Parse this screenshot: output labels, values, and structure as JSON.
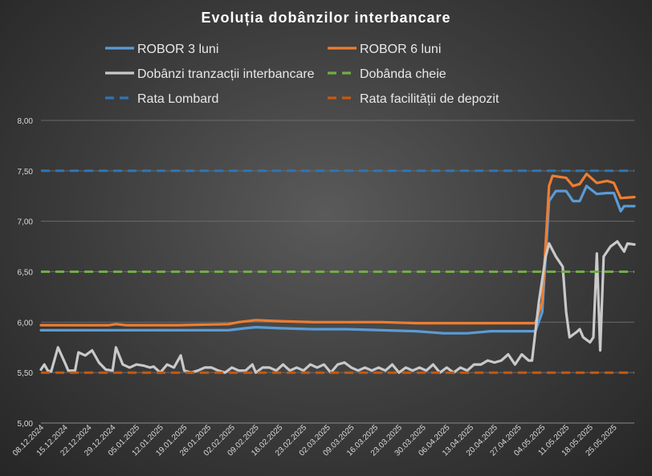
{
  "chart_data": {
    "type": "line",
    "title": "Evoluția dobânzilor interbancare",
    "xlabel": "",
    "ylabel": "",
    "ylim": [
      5.0,
      8.0
    ],
    "y_ticks": [
      "5,00",
      "5,50",
      "6,00",
      "6,50",
      "7,00",
      "7,50",
      "8,00"
    ],
    "x_tick_labels": [
      "08.12.2024",
      "15.12.2024",
      "22.12.2024",
      "29.12.2024",
      "05.01.2025",
      "12.01.2025",
      "19.01.2025",
      "26.01.2025",
      "02.02.2025",
      "09.02.2025",
      "16.02.2025",
      "23.02.2025",
      "02.03.2025",
      "09.03.2025",
      "16.03.2025",
      "23.03.2025",
      "30.03.2025",
      "06.04.2025",
      "13.04.2025",
      "20.04.2025",
      "27.04.2025",
      "04.05.2025",
      "11.05.2025",
      "18.05.2025",
      "25.05.2025"
    ],
    "x_range_days": [
      0,
      172
    ],
    "grid": true,
    "legend_position": "top",
    "series": [
      {
        "name": "ROBOR 3 luni",
        "color": "#5b9bd5",
        "dash": false,
        "points": [
          [
            0,
            5.92
          ],
          [
            20,
            5.92
          ],
          [
            40,
            5.92
          ],
          [
            55,
            5.92
          ],
          [
            60,
            5.94
          ],
          [
            63,
            5.95
          ],
          [
            70,
            5.94
          ],
          [
            80,
            5.93
          ],
          [
            90,
            5.93
          ],
          [
            100,
            5.92
          ],
          [
            110,
            5.91
          ],
          [
            118,
            5.89
          ],
          [
            125,
            5.89
          ],
          [
            132,
            5.91
          ],
          [
            145,
            5.91
          ],
          [
            147,
            6.1
          ],
          [
            149,
            7.2
          ],
          [
            151,
            7.3
          ],
          [
            154,
            7.3
          ],
          [
            156,
            7.2
          ],
          [
            158,
            7.2
          ],
          [
            160,
            7.35
          ],
          [
            163,
            7.27
          ],
          [
            166,
            7.28
          ],
          [
            168,
            7.28
          ],
          [
            170,
            7.1
          ],
          [
            171,
            7.15
          ],
          [
            174,
            7.15
          ]
        ]
      },
      {
        "name": "ROBOR 6 luni",
        "color": "#ed7d31",
        "dash": false,
        "points": [
          [
            0,
            5.97
          ],
          [
            20,
            5.97
          ],
          [
            22,
            5.98
          ],
          [
            25,
            5.97
          ],
          [
            40,
            5.97
          ],
          [
            55,
            5.98
          ],
          [
            58,
            6.0
          ],
          [
            63,
            6.02
          ],
          [
            70,
            6.01
          ],
          [
            80,
            6.0
          ],
          [
            100,
            6.0
          ],
          [
            110,
            5.99
          ],
          [
            125,
            5.99
          ],
          [
            132,
            5.99
          ],
          [
            145,
            5.99
          ],
          [
            147,
            6.2
          ],
          [
            149,
            7.35
          ],
          [
            150,
            7.45
          ],
          [
            154,
            7.43
          ],
          [
            156,
            7.35
          ],
          [
            158,
            7.37
          ],
          [
            160,
            7.47
          ],
          [
            163,
            7.38
          ],
          [
            166,
            7.4
          ],
          [
            168,
            7.38
          ],
          [
            170,
            7.23
          ],
          [
            174,
            7.24
          ]
        ]
      },
      {
        "name": "Dobânzi tranzacții interbancare",
        "color": "#c9c9c9",
        "dash": false,
        "points": [
          [
            0,
            5.53
          ],
          [
            1,
            5.58
          ],
          [
            2,
            5.52
          ],
          [
            3,
            5.51
          ],
          [
            5,
            5.75
          ],
          [
            7,
            5.6
          ],
          [
            8,
            5.52
          ],
          [
            10,
            5.52
          ],
          [
            11,
            5.7
          ],
          [
            13,
            5.67
          ],
          [
            15,
            5.72
          ],
          [
            17,
            5.6
          ],
          [
            19,
            5.53
          ],
          [
            21,
            5.52
          ],
          [
            22,
            5.75
          ],
          [
            24,
            5.58
          ],
          [
            26,
            5.55
          ],
          [
            28,
            5.58
          ],
          [
            30,
            5.57
          ],
          [
            32,
            5.55
          ],
          [
            33,
            5.56
          ],
          [
            35,
            5.5
          ],
          [
            37,
            5.58
          ],
          [
            39,
            5.55
          ],
          [
            41,
            5.67
          ],
          [
            42,
            5.52
          ],
          [
            44,
            5.5
          ],
          [
            46,
            5.52
          ],
          [
            48,
            5.55
          ],
          [
            50,
            5.55
          ],
          [
            52,
            5.52
          ],
          [
            54,
            5.5
          ],
          [
            56,
            5.55
          ],
          [
            58,
            5.52
          ],
          [
            60,
            5.52
          ],
          [
            62,
            5.58
          ],
          [
            63,
            5.5
          ],
          [
            65,
            5.55
          ],
          [
            67,
            5.55
          ],
          [
            69,
            5.52
          ],
          [
            71,
            5.58
          ],
          [
            73,
            5.52
          ],
          [
            75,
            5.55
          ],
          [
            77,
            5.52
          ],
          [
            79,
            5.58
          ],
          [
            81,
            5.55
          ],
          [
            83,
            5.58
          ],
          [
            85,
            5.5
          ],
          [
            87,
            5.58
          ],
          [
            89,
            5.6
          ],
          [
            91,
            5.55
          ],
          [
            93,
            5.52
          ],
          [
            95,
            5.55
          ],
          [
            97,
            5.52
          ],
          [
            99,
            5.55
          ],
          [
            101,
            5.52
          ],
          [
            103,
            5.58
          ],
          [
            105,
            5.5
          ],
          [
            107,
            5.55
          ],
          [
            109,
            5.52
          ],
          [
            111,
            5.55
          ],
          [
            113,
            5.52
          ],
          [
            115,
            5.58
          ],
          [
            117,
            5.5
          ],
          [
            119,
            5.55
          ],
          [
            121,
            5.5
          ],
          [
            123,
            5.55
          ],
          [
            125,
            5.52
          ],
          [
            127,
            5.58
          ],
          [
            129,
            5.58
          ],
          [
            131,
            5.62
          ],
          [
            133,
            5.6
          ],
          [
            135,
            5.62
          ],
          [
            137,
            5.68
          ],
          [
            139,
            5.58
          ],
          [
            141,
            5.68
          ],
          [
            143,
            5.62
          ],
          [
            144,
            5.62
          ],
          [
            146,
            6.2
          ],
          [
            148,
            6.65
          ],
          [
            149,
            6.78
          ],
          [
            151,
            6.65
          ],
          [
            153,
            6.55
          ],
          [
            154,
            6.1
          ],
          [
            155,
            5.85
          ],
          [
            157,
            5.9
          ],
          [
            158,
            5.93
          ],
          [
            159,
            5.85
          ],
          [
            161,
            5.8
          ],
          [
            162,
            5.85
          ],
          [
            163,
            6.68
          ],
          [
            164,
            5.72
          ],
          [
            165,
            6.65
          ],
          [
            167,
            6.75
          ],
          [
            169,
            6.8
          ],
          [
            171,
            6.7
          ],
          [
            172,
            6.78
          ],
          [
            174,
            6.77
          ]
        ]
      },
      {
        "name": "Dobânda cheie",
        "color": "#70ad47",
        "dash": true,
        "points": [
          [
            0,
            6.5
          ],
          [
            174,
            6.5
          ]
        ]
      },
      {
        "name": "Rata Lombard",
        "color": "#2e75b6",
        "dash": true,
        "points": [
          [
            0,
            7.5
          ],
          [
            174,
            7.5
          ]
        ]
      },
      {
        "name": "Rata facilității de depozit",
        "color": "#c55a11",
        "dash": true,
        "points": [
          [
            0,
            5.5
          ],
          [
            174,
            5.5
          ]
        ]
      }
    ]
  }
}
